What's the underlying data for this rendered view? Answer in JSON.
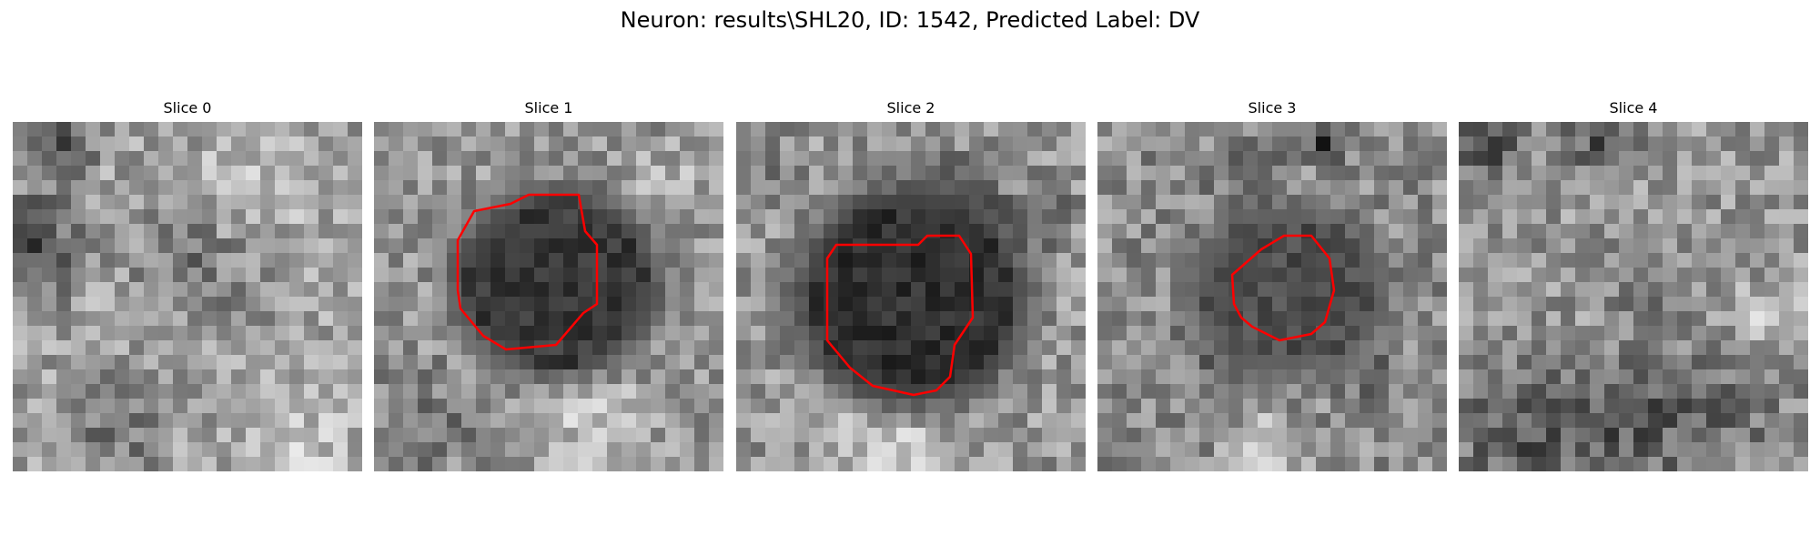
{
  "figure": {
    "title": "Neuron: results\\SHL20, ID: 1542, Predicted Label: DV"
  },
  "colors": {
    "contour": "#ff0000",
    "background": "#ffffff"
  },
  "slices": [
    {
      "title": "Slice 0",
      "has_contour": false
    },
    {
      "title": "Slice 1",
      "has_contour": true
    },
    {
      "title": "Slice 2",
      "has_contour": true
    },
    {
      "title": "Slice 3",
      "has_contour": true
    },
    {
      "title": "Slice 4",
      "has_contour": false
    }
  ]
}
